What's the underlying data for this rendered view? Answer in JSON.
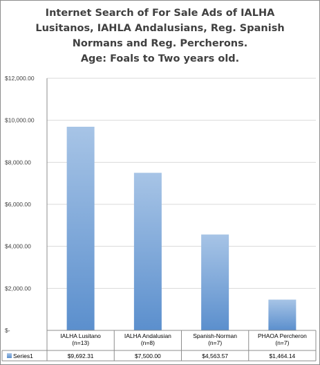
{
  "chart_data": {
    "type": "bar",
    "title_lines": [
      "Internet Search of For Sale Ads of IALHA",
      "Lusitanos, IAHLA Andalusians, Reg. Spanish",
      "Normans and Reg. Percherons.",
      "Age: Foals to Two years old."
    ],
    "categories": [
      [
        "IALHA Lusitano",
        "(n=13)"
      ],
      [
        "IALHA Andalusian",
        "(n=8)"
      ],
      [
        "Spanish-Norman",
        "(n=7)"
      ],
      [
        "PHAOA Percheron",
        "(n=7)"
      ]
    ],
    "series": [
      {
        "name": "Series1",
        "values": [
          9692.31,
          7500.0,
          4563.57,
          1464.14
        ],
        "value_labels": [
          "$9,692.31",
          "$7,500.00",
          "$4,563.57",
          "$1,464.14"
        ]
      }
    ],
    "y_ticks": [
      "$-",
      "$2,000.00",
      "$4,000.00",
      "$6,000.00",
      "$8,000.00",
      "$10,000.00",
      "$12,000.00"
    ],
    "ylim": [
      0,
      12000
    ],
    "y_step": 2000,
    "grid": true,
    "legend": "data-table",
    "colors": {
      "bar_top": "#a7c4e6",
      "bar_bottom": "#5b8fcd",
      "grid": "#d9d9d9",
      "axis": "#8c8c8c"
    }
  }
}
